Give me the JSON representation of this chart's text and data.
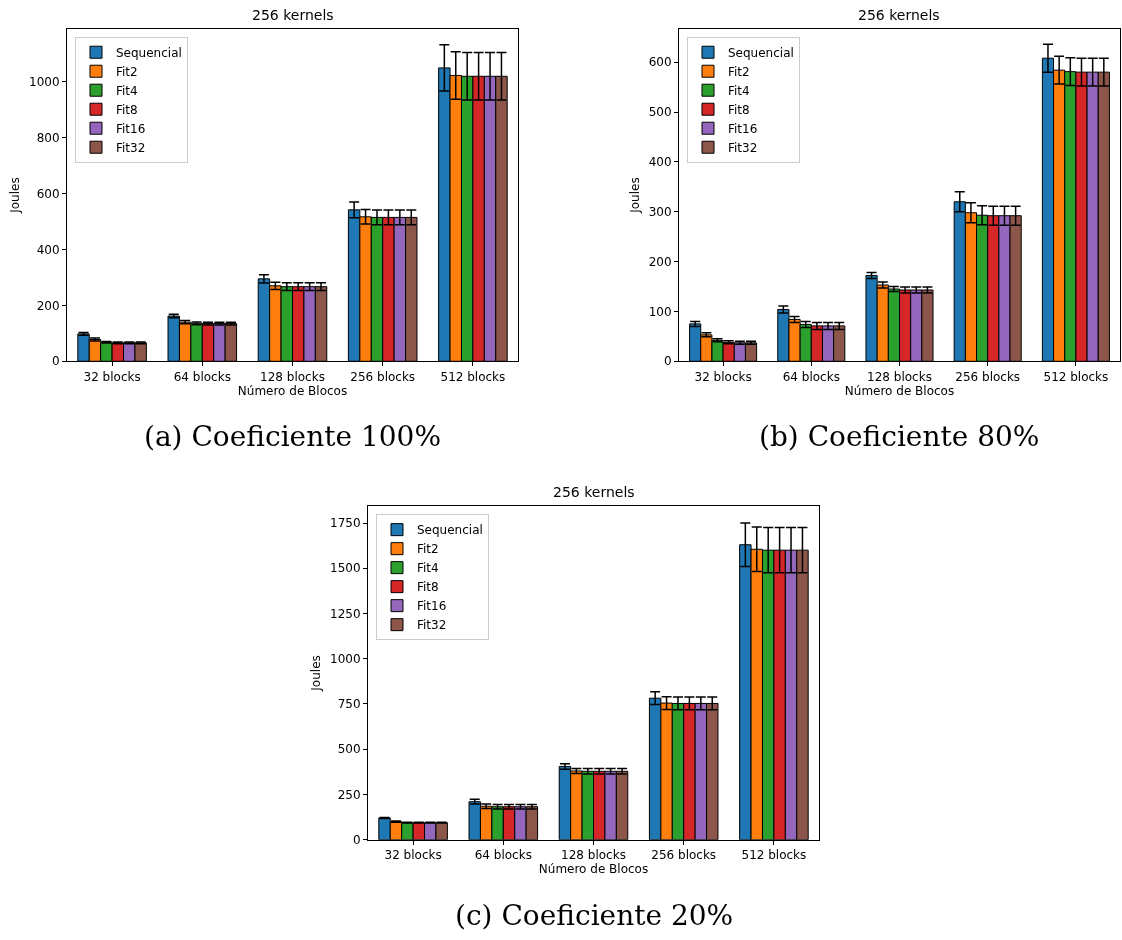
{
  "chart_data": [
    {
      "type": "bar",
      "title": "256 kernels",
      "xlabel": "Número de Blocos",
      "ylabel": "Joules",
      "annotations": [
        "(a) Coeficiente 100%"
      ],
      "categories": [
        "32 blocks",
        "64 blocks",
        "128 blocks",
        "256 blocks",
        "512 blocks"
      ],
      "ylim": [
        0,
        1190
      ],
      "yticks": [
        0,
        200,
        400,
        600,
        800,
        1000
      ],
      "legend": "top left",
      "series": [
        {
          "name": "Sequencial",
          "color": "#1f77b4",
          "values": [
            98,
            162,
            295,
            542,
            1050
          ],
          "errors": [
            5,
            6,
            15,
            28,
            83
          ]
        },
        {
          "name": "Fit2",
          "color": "#ff7f0e",
          "values": [
            78,
            140,
            270,
            517,
            1023
          ],
          "errors": [
            5,
            6,
            13,
            26,
            85
          ]
        },
        {
          "name": "Fit4",
          "color": "#2ca02c",
          "values": [
            68,
            136,
            267,
            515,
            1020
          ],
          "errors": [
            3,
            5,
            14,
            26,
            85
          ]
        },
        {
          "name": "Fit8",
          "color": "#d62728",
          "values": [
            66,
            135,
            267,
            515,
            1020
          ],
          "errors": [
            3,
            5,
            14,
            26,
            85
          ]
        },
        {
          "name": "Fit16",
          "color": "#9467bd",
          "values": [
            66,
            135,
            267,
            515,
            1020
          ],
          "errors": [
            3,
            5,
            14,
            26,
            85
          ]
        },
        {
          "name": "Fit32",
          "color": "#8c564b",
          "values": [
            66,
            135,
            267,
            515,
            1020
          ],
          "errors": [
            3,
            5,
            14,
            26,
            85
          ]
        }
      ]
    },
    {
      "type": "bar",
      "title": "256 kernels",
      "xlabel": "Número de Blocos",
      "ylabel": "Joules",
      "annotations": [
        "(b) Coeficiente 80%"
      ],
      "categories": [
        "32 blocks",
        "64 blocks",
        "128 blocks",
        "256 blocks",
        "512 blocks"
      ],
      "ylim": [
        0,
        667
      ],
      "yticks": [
        0,
        100,
        200,
        300,
        400,
        500,
        600
      ],
      "legend": "top left",
      "series": [
        {
          "name": "Sequencial",
          "color": "#1f77b4",
          "values": [
            75,
            104,
            172,
            320,
            608
          ],
          "errors": [
            5,
            7,
            6,
            20,
            28
          ]
        },
        {
          "name": "Fit2",
          "color": "#ff7f0e",
          "values": [
            53,
            84,
            153,
            298,
            584
          ],
          "errors": [
            4,
            6,
            6,
            20,
            28
          ]
        },
        {
          "name": "Fit4",
          "color": "#2ca02c",
          "values": [
            42,
            74,
            145,
            293,
            581
          ],
          "errors": [
            3,
            6,
            5,
            19,
            28
          ]
        },
        {
          "name": "Fit8",
          "color": "#d62728",
          "values": [
            38,
            71,
            143,
            292,
            580
          ],
          "errors": [
            3,
            7,
            6,
            19,
            28
          ]
        },
        {
          "name": "Fit16",
          "color": "#9467bd",
          "values": [
            37,
            71,
            143,
            292,
            580
          ],
          "errors": [
            3,
            7,
            6,
            19,
            28
          ]
        },
        {
          "name": "Fit32",
          "color": "#8c564b",
          "values": [
            37,
            71,
            143,
            292,
            580
          ],
          "errors": [
            3,
            7,
            6,
            19,
            28
          ]
        }
      ]
    },
    {
      "type": "bar",
      "title": "256 kernels",
      "xlabel": "Número de Blocos",
      "ylabel": "Joules",
      "annotations": [
        "(c) Coeficiente 20%"
      ],
      "categories": [
        "32 blocks",
        "64 blocks",
        "128 blocks",
        "256 blocks",
        "512 blocks"
      ],
      "ylim": [
        0,
        1843
      ],
      "yticks": [
        0,
        250,
        500,
        750,
        1000,
        1250,
        1500,
        1750
      ],
      "legend": "top left",
      "series": [
        {
          "name": "Sequencial",
          "color": "#1f77b4",
          "values": [
            120,
            210,
            405,
            782,
            1630
          ],
          "errors": [
            3,
            13,
            15,
            35,
            120
          ]
        },
        {
          "name": "Fit2",
          "color": "#ff7f0e",
          "values": [
            100,
            185,
            380,
            755,
            1605
          ],
          "errors": [
            3,
            12,
            14,
            35,
            123
          ]
        },
        {
          "name": "Fit4",
          "color": "#2ca02c",
          "values": [
            94,
            182,
            378,
            753,
            1600
          ],
          "errors": [
            2,
            12,
            15,
            35,
            125
          ]
        },
        {
          "name": "Fit8",
          "color": "#d62728",
          "values": [
            94,
            182,
            378,
            753,
            1600
          ],
          "errors": [
            2,
            12,
            15,
            35,
            125
          ]
        },
        {
          "name": "Fit16",
          "color": "#9467bd",
          "values": [
            94,
            182,
            378,
            753,
            1600
          ],
          "errors": [
            2,
            12,
            15,
            35,
            125
          ]
        },
        {
          "name": "Fit32",
          "color": "#8c564b",
          "values": [
            94,
            182,
            378,
            753,
            1600
          ],
          "errors": [
            2,
            12,
            15,
            35,
            125
          ]
        }
      ]
    }
  ]
}
